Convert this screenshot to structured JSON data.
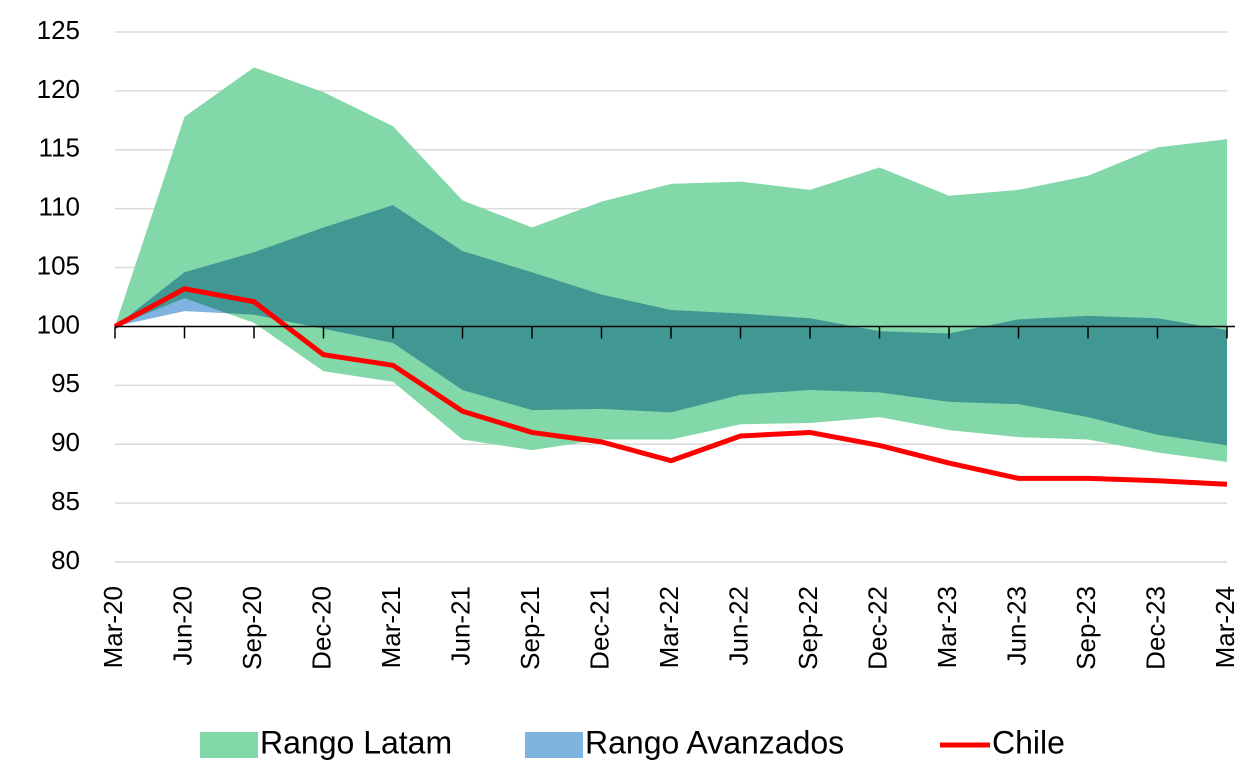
{
  "chart_data": {
    "type": "range-area",
    "categories": [
      "Mar-20",
      "Jun-20",
      "Sep-20",
      "Dec-20",
      "Mar-21",
      "Jun-21",
      "Sep-21",
      "Dec-21",
      "Mar-22",
      "Jun-22",
      "Sep-22",
      "Dec-22",
      "Mar-23",
      "Jun-23",
      "Sep-23",
      "Dec-23",
      "Mar-24"
    ],
    "ylim": [
      80,
      125
    ],
    "yticks": [
      80,
      85,
      90,
      95,
      100,
      105,
      110,
      115,
      120,
      125
    ],
    "grid": true,
    "x_axis_crossing": 100,
    "legend": "bottom",
    "series": [
      {
        "name": "Rango Latam",
        "color": "#82d8a8",
        "high": [
          100,
          117.8,
          122,
          119.9,
          117,
          110.7,
          108.4,
          110.6,
          112.1,
          112.3,
          111.6,
          113.5,
          111.1,
          111.6,
          112.8,
          115.2,
          115.9
        ],
        "low": [
          100,
          102.4,
          100.3,
          96.2,
          95.3,
          90.4,
          89.5,
          90.4,
          90.4,
          91.7,
          91.8,
          92.3,
          91.2,
          90.6,
          90.4,
          89.3,
          88.5
        ]
      },
      {
        "name": "Rango Avanzados",
        "color": "#7fb3e0",
        "high": [
          100,
          104.6,
          106.3,
          108.4,
          110.3,
          106.4,
          104.6,
          102.7,
          101.4,
          101.1,
          100.7,
          99.6,
          99.4,
          100.6,
          100.9,
          100.7,
          99.7
        ],
        "low": [
          100,
          101.3,
          101.0,
          99.8,
          98.6,
          94.6,
          92.9,
          93.0,
          92.7,
          94.2,
          94.6,
          94.4,
          93.6,
          93.4,
          92.3,
          90.8,
          89.9
        ]
      },
      {
        "name": "Chile",
        "color": "#ff0000",
        "values": [
          100,
          103.2,
          102.1,
          97.6,
          96.7,
          92.8,
          91.0,
          90.2,
          88.6,
          90.7,
          91.0,
          89.9,
          88.4,
          87.1,
          87.1,
          86.9,
          86.6
        ]
      }
    ]
  }
}
